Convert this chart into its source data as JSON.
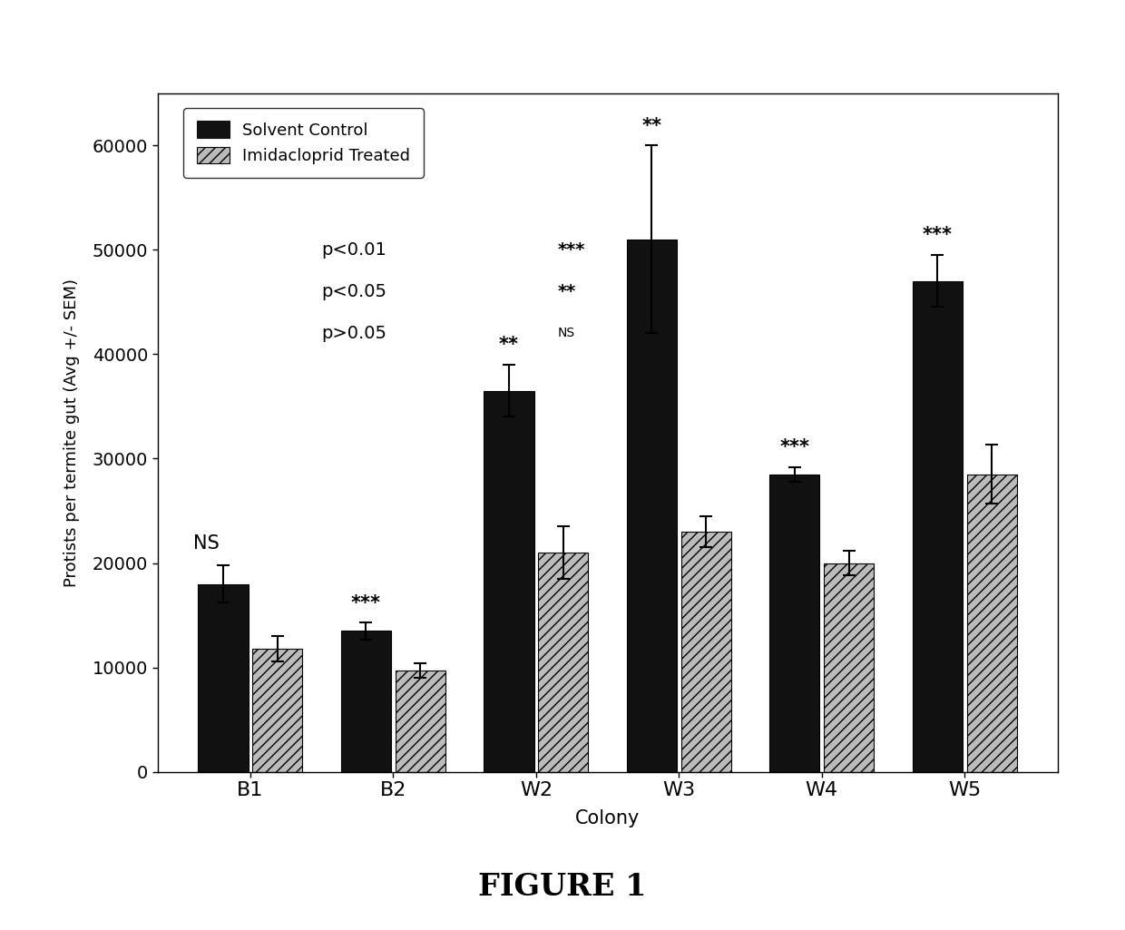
{
  "categories": [
    "B1",
    "B2",
    "W2",
    "W3",
    "W4",
    "W5"
  ],
  "solvent_control": [
    18000,
    13500,
    36500,
    51000,
    28500,
    47000
  ],
  "imidacloprid_treated": [
    11800,
    9700,
    21000,
    23000,
    20000,
    28500
  ],
  "solvent_sem": [
    1800,
    800,
    2500,
    9000,
    700,
    2500
  ],
  "imidacloprid_sem": [
    1200,
    700,
    2500,
    1500,
    1200,
    2800
  ],
  "significance": [
    "NS",
    "***",
    "**",
    "**",
    "***",
    "***"
  ],
  "sig_above_control": [
    true,
    false,
    false,
    false,
    false,
    false
  ],
  "ylabel": "Protists per termite gut (Avg +/- SEM)",
  "xlabel": "Colony",
  "figure_label": "FIGURE 1",
  "legend_labels": [
    "Solvent Control",
    "Imidacloprid Treated"
  ],
  "bar_color_control": "#111111",
  "bar_color_treated": "#bbbbbb",
  "bar_hatch_treated": "///",
  "ylim": [
    0,
    65000
  ],
  "yticks": [
    0,
    10000,
    20000,
    30000,
    40000,
    50000,
    60000
  ],
  "background_color": "#ffffff"
}
